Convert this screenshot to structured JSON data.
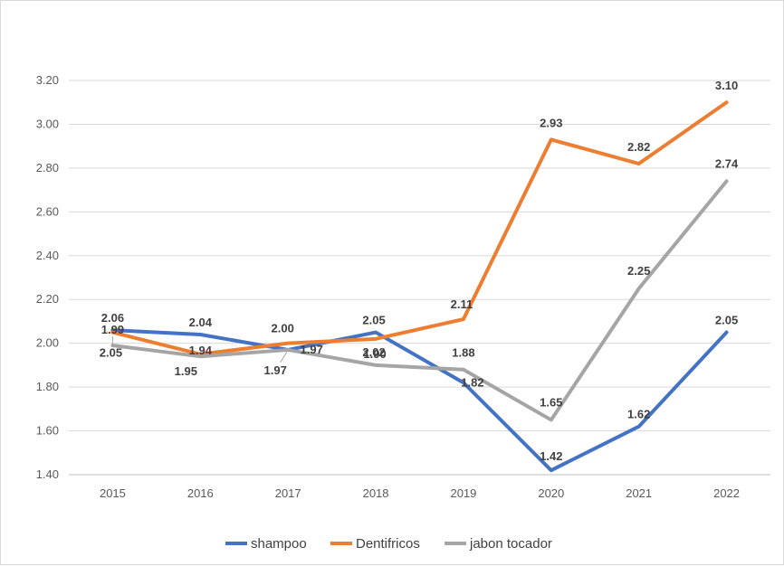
{
  "chart_data": {
    "type": "line",
    "title": "",
    "xlabel": "",
    "ylabel": "",
    "categories": [
      "2015",
      "2016",
      "2017",
      "2018",
      "2019",
      "2020",
      "2021",
      "2022"
    ],
    "ylim": [
      1.4,
      3.2
    ],
    "yticks": [
      "1.40",
      "1.60",
      "1.80",
      "2.00",
      "2.20",
      "2.40",
      "2.60",
      "2.80",
      "3.00",
      "3.20"
    ],
    "grid": true,
    "legend_position": "bottom",
    "series": [
      {
        "name": "shampoo",
        "color": "#4472C4",
        "values": [
          2.06,
          2.04,
          1.97,
          2.05,
          1.82,
          1.42,
          1.62,
          2.05
        ],
        "labels": [
          "2.06",
          "2.04",
          "1.97",
          "2.05",
          "1.82",
          "1.42",
          "1.62",
          "2.05"
        ]
      },
      {
        "name": "Dentifricos",
        "color": "#ED7D31",
        "values": [
          2.05,
          1.95,
          2.0,
          2.02,
          2.11,
          2.93,
          2.82,
          3.1
        ],
        "labels": [
          "2.05",
          "1.95",
          "2.00",
          "2.02",
          "2.11",
          "2.93",
          "2.82",
          "3.10"
        ]
      },
      {
        "name": "jabon tocador",
        "color": "#A5A5A5",
        "values": [
          1.99,
          1.94,
          1.97,
          1.9,
          1.88,
          1.65,
          2.25,
          2.74
        ],
        "labels": [
          "1.99",
          "1.94",
          "1.97",
          "1.90",
          "1.88",
          "1.65",
          "2.25",
          "2.74"
        ]
      }
    ]
  }
}
